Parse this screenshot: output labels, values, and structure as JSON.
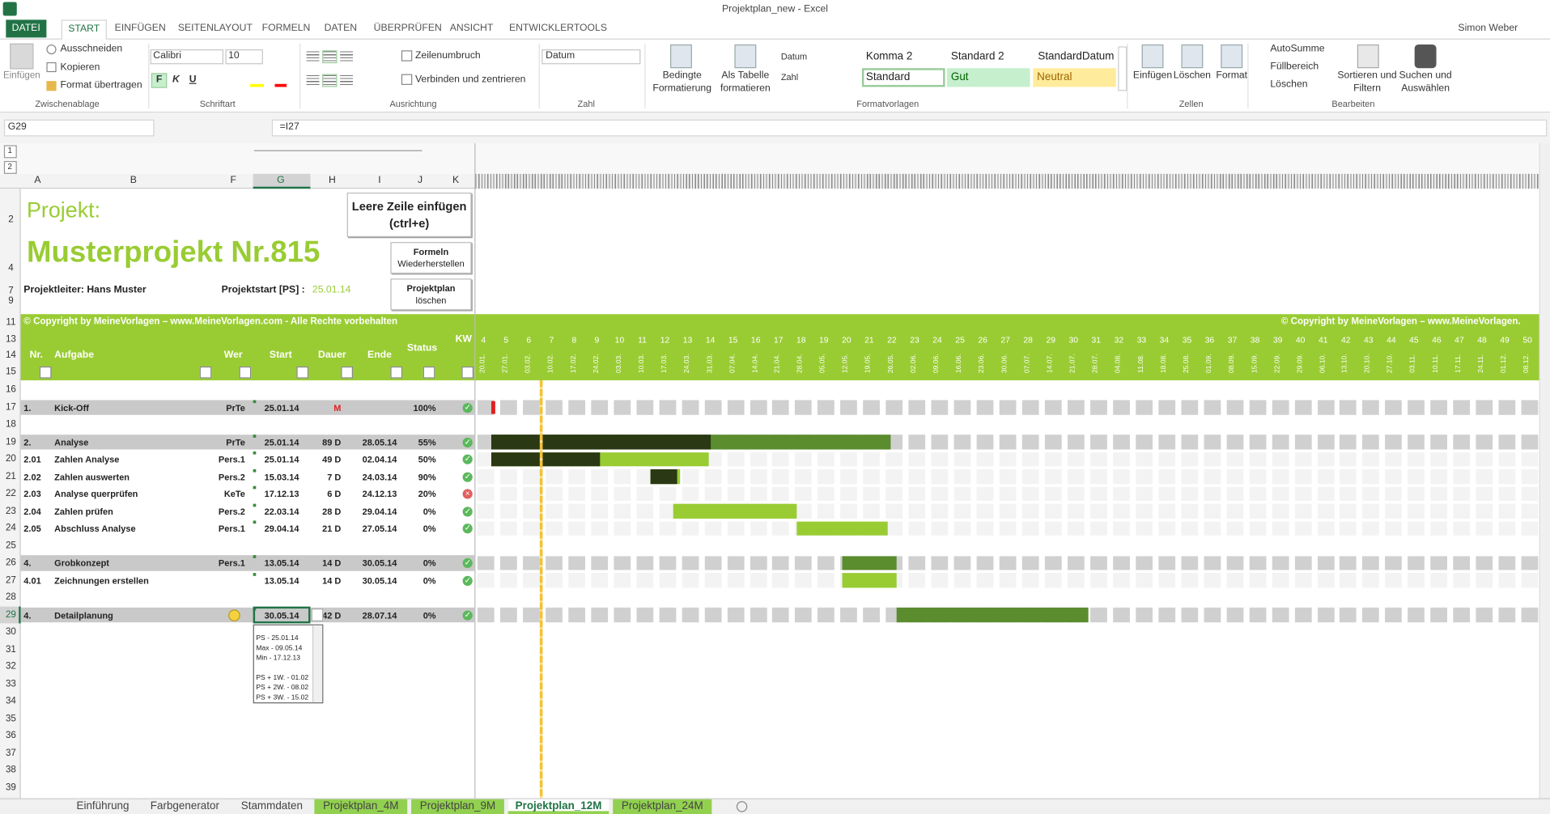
{
  "window": {
    "title": "Projektplan_new - Excel",
    "user": "Simon Weber"
  },
  "ribbon": {
    "tabs": [
      "DATEI",
      "START",
      "EINFÜGEN",
      "SEITENLAYOUT",
      "FORMELN",
      "DATEN",
      "ÜBERPRÜFEN",
      "ANSICHT",
      "ENTWICKLERTOOLS"
    ],
    "active_tab": 1,
    "groups": [
      "Zwischenablage",
      "Schriftart",
      "Ausrichtung",
      "Zahl",
      "Formatvorlagen",
      "Zellen",
      "Bearbeiten"
    ],
    "clipboard": {
      "paste": "Einfügen",
      "cut": "Ausschneiden",
      "copy": "Kopieren",
      "format_painter": "Format übertragen"
    },
    "font": {
      "name": "Calibri",
      "size": "10",
      "bold": "F",
      "italic": "K",
      "underline": "U"
    },
    "alignment": {
      "wrap": "Zeilenumbruch",
      "merge": "Verbinden und zentrieren"
    },
    "number": {
      "format": "Datum"
    },
    "conditional": [
      "Bedingte",
      "Formatierung"
    ],
    "as_table": [
      "Als Tabelle",
      "formatieren"
    ],
    "styles": {
      "row1": [
        "Datum",
        "Komma 2",
        "Standard 2",
        "StandardDatum"
      ],
      "row2": [
        "Zahl",
        "Standard",
        "Gut",
        "Neutral"
      ]
    },
    "cells": [
      "Einfügen",
      "Löschen",
      "Format"
    ],
    "editing": {
      "autosum": "AutoSumme",
      "fill": "Füllbereich",
      "clear": "Löschen",
      "sort": [
        "Sortieren und",
        "Filtern"
      ],
      "find": [
        "Suchen und",
        "Auswählen"
      ]
    }
  },
  "formula_bar": {
    "name_box": "G29",
    "formula": "=I27"
  },
  "columns": [
    "A",
    "B",
    "F",
    "G",
    "H",
    "I",
    "J",
    "K"
  ],
  "selected_column": 3,
  "outline_levels": [
    "1",
    "2"
  ],
  "top_rows": [
    "2",
    "4",
    "7",
    "9",
    "11",
    "13",
    "14",
    "15"
  ],
  "project": {
    "label": "Projekt:",
    "name": "Musterprojekt Nr.815",
    "lead": "Projektleiter: Hans Muster",
    "start_label": "Projektstart [PS] :",
    "start": "25.01.14"
  },
  "buttons": [
    [
      "Leere Zeile einfügen",
      "(ctrl+e)"
    ],
    [
      "Formeln",
      "Wiederherstellen"
    ],
    [
      "Projektplan",
      "löschen"
    ]
  ],
  "copyright": "© Copyright by MeineVorlagen – www.MeineVorlagen.com - Alle Rechte vorbehalten",
  "copyright_right": "© Copyright by MeineVorlagen – www.MeineVorlagen.",
  "table_headers": {
    "nr": "Nr.",
    "task": "Aufgabe",
    "who": "Wer",
    "start": "Start",
    "duration": "Dauer",
    "end": "Ende",
    "status": "Status",
    "kw": "KW"
  },
  "weeks": [
    4,
    5,
    6,
    7,
    8,
    9,
    10,
    11,
    12,
    13,
    14,
    15,
    16,
    17,
    18,
    19,
    20,
    21,
    22,
    23,
    24,
    25,
    26,
    27,
    28,
    29,
    30,
    31,
    32,
    33,
    34,
    35,
    36,
    37,
    38,
    39,
    40,
    41,
    42,
    43,
    44,
    45,
    46,
    47,
    48,
    49,
    50
  ],
  "week_dates": [
    "20.01.",
    "27.01.",
    "03.02.",
    "10.02.",
    "17.02.",
    "24.02.",
    "03.03.",
    "10.03.",
    "17.03.",
    "24.03.",
    "31.03.",
    "07.04.",
    "14.04.",
    "21.04.",
    "28.04.",
    "05.05.",
    "12.05.",
    "19.05.",
    "26.05.",
    "02.06.",
    "09.06.",
    "16.06.",
    "23.06.",
    "30.06.",
    "07.07.",
    "14.07.",
    "21.07.",
    "28.07.",
    "04.08.",
    "11.08.",
    "18.08.",
    "25.08.",
    "01.09.",
    "08.09.",
    "15.09.",
    "22.09.",
    "29.09.",
    "06.10.",
    "13.10.",
    "20.10.",
    "27.10.",
    "03.11.",
    "10.11.",
    "17.11.",
    "24.11.",
    "01.12.",
    "08.12."
  ],
  "rows": [
    {
      "header": "16"
    },
    {
      "header": "17",
      "task": {
        "nr": "1.",
        "name": "Kick-Off",
        "who": "PrTe",
        "start": "25.01.14",
        "duration": "M",
        "status": "100%",
        "summary": true,
        "icon": "check"
      }
    },
    {
      "header": "18"
    },
    {
      "header": "19",
      "task": {
        "nr": "2.",
        "name": "Analyse",
        "who": "PrTe",
        "start": "25.01.14",
        "duration": "89 D",
        "end": "28.05.14",
        "status": "55%",
        "summary": true,
        "icon": "check"
      }
    },
    {
      "header": "20",
      "task": {
        "nr": "2.01",
        "name": "Zahlen Analyse",
        "who": "Pers.1",
        "start": "25.01.14",
        "duration": "49 D",
        "end": "02.04.14",
        "status": "50%",
        "summary": false,
        "icon": "check"
      }
    },
    {
      "header": "21",
      "task": {
        "nr": "2.02",
        "name": "Zahlen auswerten",
        "who": "Pers.2",
        "start": "15.03.14",
        "duration": "7 D",
        "end": "24.03.14",
        "status": "90%",
        "summary": false,
        "icon": "check"
      }
    },
    {
      "header": "22",
      "task": {
        "nr": "2.03",
        "name": "Analyse querprüfen",
        "who": "KeTe",
        "start": "17.12.13",
        "duration": "6 D",
        "end": "24.12.13",
        "status": "20%",
        "summary": false,
        "icon": "cross"
      }
    },
    {
      "header": "23",
      "task": {
        "nr": "2.04",
        "name": "Zahlen prüfen",
        "who": "Pers.2",
        "start": "22.03.14",
        "duration": "28 D",
        "end": "29.04.14",
        "status": "0%",
        "summary": false,
        "icon": "check"
      }
    },
    {
      "header": "24",
      "task": {
        "nr": "2.05",
        "name": "Abschluss Analyse",
        "who": "Pers.1",
        "start": "29.04.14",
        "duration": "21 D",
        "end": "27.05.14",
        "status": "0%",
        "summary": false,
        "icon": "check"
      }
    },
    {
      "header": "25"
    },
    {
      "header": "26",
      "task": {
        "nr": "4.",
        "name": "Grobkonzept",
        "who": "Pers.1",
        "start": "13.05.14",
        "duration": "14 D",
        "end": "30.05.14",
        "status": "0%",
        "summary": true,
        "icon": "check"
      }
    },
    {
      "header": "27",
      "task": {
        "nr": "4.01",
        "name": "Zeichnungen erstellen",
        "start": "13.05.14",
        "duration": "14 D",
        "end": "30.05.14",
        "status": "0%",
        "summary": false,
        "icon": "check"
      }
    },
    {
      "header": "28"
    },
    {
      "header": "29",
      "task": {
        "nr": "4.",
        "name": "Detailplanung",
        "start": "30.05.14",
        "duration": "42 D",
        "end": "28.07.14",
        "status": "0%",
        "summary": true,
        "icon": "check"
      }
    },
    {
      "header": "30"
    },
    {
      "header": "31"
    },
    {
      "header": "32"
    },
    {
      "header": "33"
    },
    {
      "header": "34"
    },
    {
      "header": "35"
    },
    {
      "header": "36"
    },
    {
      "header": "37"
    },
    {
      "header": "38"
    },
    {
      "header": "39"
    }
  ],
  "selected_row": 13,
  "dropdown": [
    "PS - 25.01.14",
    "Max - 09.05.14",
    "Min - 17.12.13",
    "PS + 1W. - 01.02",
    "PS + 2W. - 08.02",
    "PS + 3W. - 15.02"
  ],
  "sheet_tabs": [
    {
      "label": "Einführung"
    },
    {
      "label": "Farbgenerator"
    },
    {
      "label": "Stammdaten"
    },
    {
      "label": "Projektplan_4M",
      "color": "#92d050"
    },
    {
      "label": "Projektplan_9M",
      "color": "#92d050"
    },
    {
      "label": "Projektplan_12M",
      "color": "#92d050"
    },
    {
      "label": "Projektplan_24M",
      "color": "#92d050"
    }
  ],
  "active_sheet": 5
}
